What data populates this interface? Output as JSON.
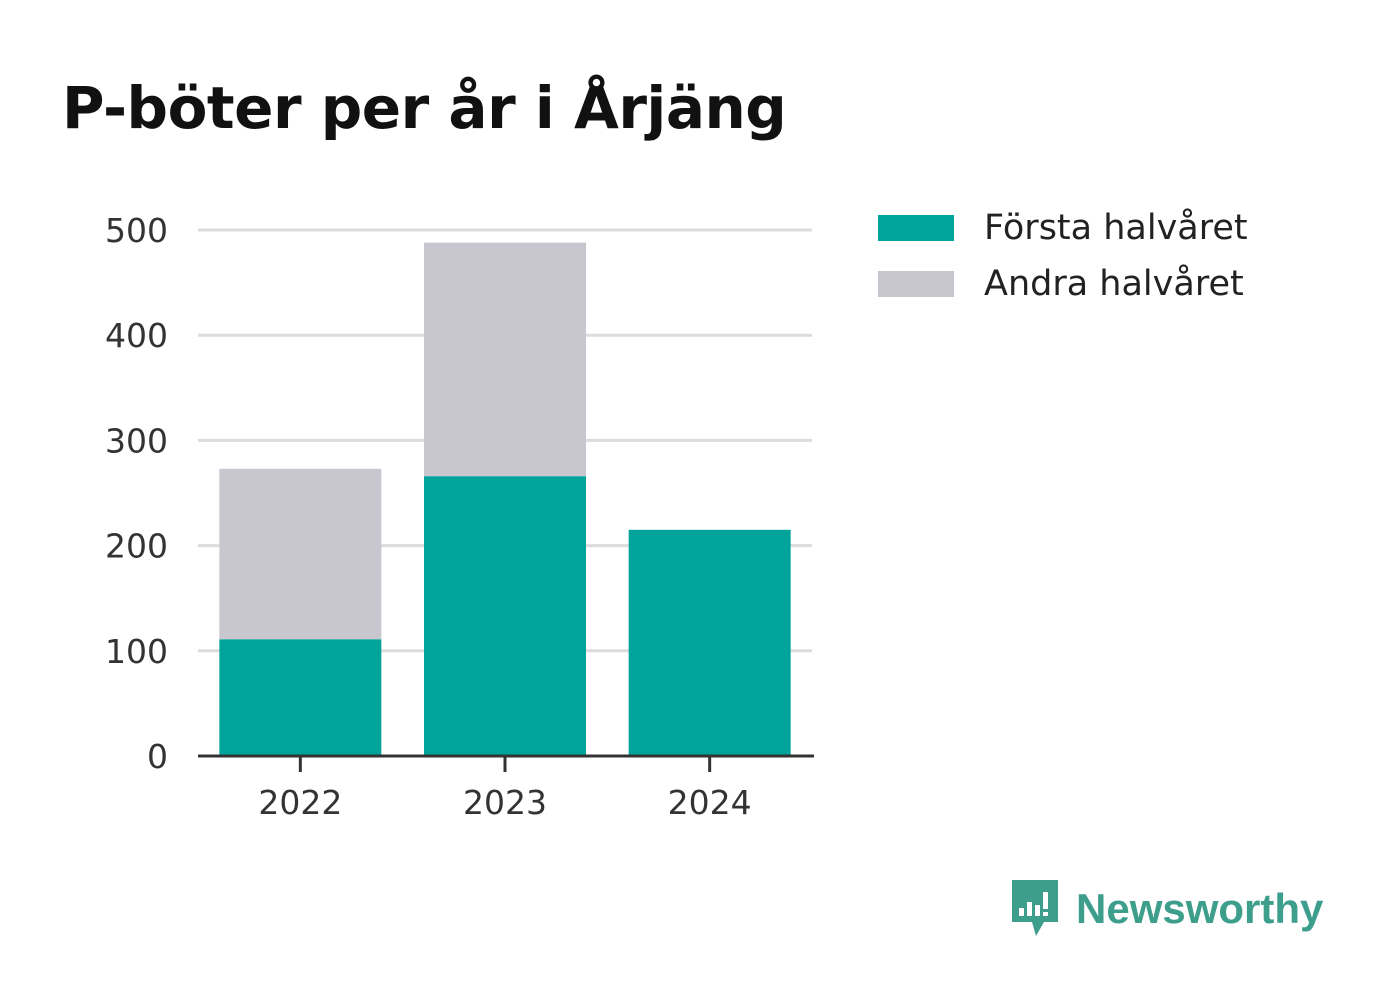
{
  "title": "P-böter per år i Årjäng",
  "colors": {
    "first_half": "#00a49a",
    "second_half": "#c8c7d0",
    "grid": "#dcdcdc",
    "axis": "#333333",
    "brand": "#3d9e8c"
  },
  "chart_data": {
    "type": "bar",
    "stacked": true,
    "categories": [
      "2022",
      "2023",
      "2024"
    ],
    "series": [
      {
        "name": "Första halvåret",
        "values": [
          111,
          266,
          215
        ]
      },
      {
        "name": "Andra halvåret",
        "values": [
          162,
          222,
          0
        ]
      }
    ],
    "yticks": [
      0,
      100,
      200,
      300,
      400,
      500
    ],
    "ylim": [
      0,
      500
    ],
    "grid": true,
    "legend_position": "right"
  },
  "legend": {
    "items": [
      {
        "label": "Första halvåret",
        "color_key": "first_half"
      },
      {
        "label": "Andra halvåret",
        "color_key": "second_half"
      }
    ]
  },
  "brand": {
    "name": "Newsworthy",
    "icon": "newsworthy-logo-icon"
  }
}
